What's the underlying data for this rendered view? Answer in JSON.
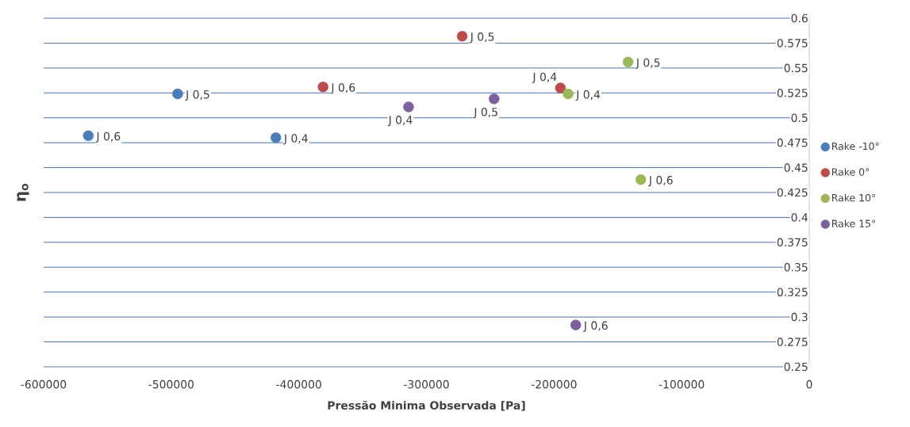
{
  "chart_data": {
    "type": "scatter",
    "xlabel": "Pressão Minima Observada [Pa]",
    "ylabel": "η$_{o}$",
    "xlim": [
      -600000,
      0
    ],
    "xticks": [
      -600000,
      -500000,
      -400000,
      -300000,
      -200000,
      -100000,
      0
    ],
    "ylim": [
      0.25,
      0.6
    ],
    "yticks": [
      0.25,
      0.275,
      0.3,
      0.325,
      0.35,
      0.375,
      0.4,
      0.425,
      0.45,
      0.475,
      0.5,
      0.525,
      0.55,
      0.575,
      0.6
    ],
    "grid": "y",
    "legend": "right",
    "marker": "circle",
    "series": [
      {
        "name": "Rake -10°",
        "color": "#4a7ebb",
        "x": [
          -565000,
          -495000,
          -418000
        ],
        "values": [
          0.482,
          0.524,
          0.48
        ]
      },
      {
        "name": "Rake 0°",
        "color": "#be4b48",
        "x": [
          -272000,
          -381000,
          -195000
        ],
        "values": [
          0.582,
          0.531,
          0.53
        ]
      },
      {
        "name": "Rake 10°",
        "color": "#98b954",
        "x": [
          -142000,
          -189000,
          -132000
        ],
        "values": [
          0.556,
          0.524,
          0.438
        ]
      },
      {
        "name": "Rake 15°",
        "color": "#7d60a0",
        "x": [
          -314000,
          -247000,
          -183000
        ],
        "values": [
          0.511,
          0.519,
          0.292
        ]
      }
    ],
    "annotations": [
      {
        "text": "J 0,6",
        "x": -565000,
        "y": 0.482
      },
      {
        "text": "J 0,5",
        "x": -495000,
        "y": 0.524
      },
      {
        "text": "J 0,4",
        "x": -418000,
        "y": 0.48
      },
      {
        "text": "J 0,5",
        "x": -272000,
        "y": 0.582
      },
      {
        "text": "J 0,6",
        "x": -381000,
        "y": 0.531
      },
      {
        "text": "J 0,4",
        "x": -195000,
        "y": 0.53
      },
      {
        "text": "J 0,5",
        "x": -142000,
        "y": 0.556
      },
      {
        "text": "J 0,4",
        "x": -189000,
        "y": 0.524
      },
      {
        "text": "J 0,6",
        "x": -132000,
        "y": 0.438
      },
      {
        "text": "J 0,4",
        "x": -314000,
        "y": 0.511
      },
      {
        "text": "J 0,5",
        "x": -247000,
        "y": 0.519
      },
      {
        "text": "J 0,6",
        "x": -183000,
        "y": 0.292
      }
    ]
  }
}
